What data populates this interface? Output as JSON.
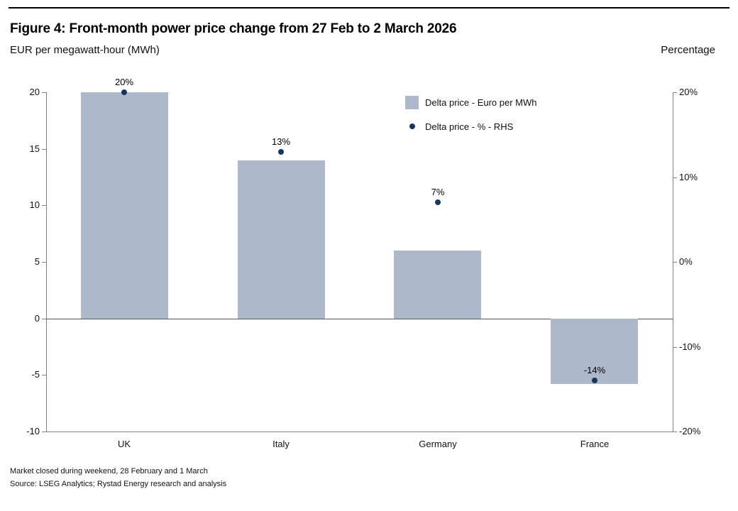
{
  "header": {
    "title": "Figure 4: Front-month power price change from 27 Feb to 2 March 2026",
    "subtitle_left": "EUR per megawatt-hour (MWh)",
    "subtitle_right": "Percentage"
  },
  "legend": {
    "bar_label": "Delta price - Euro per MWh",
    "dot_label": "Delta price - % - RHS"
  },
  "chart_data": {
    "type": "bar",
    "categories": [
      "UK",
      "Italy",
      "Germany",
      "France"
    ],
    "series": [
      {
        "name": "Delta price - Euro per MWh",
        "type": "bar",
        "axis": "left",
        "values": [
          20,
          14,
          6,
          -5.8
        ]
      },
      {
        "name": "Delta price - % - RHS",
        "type": "scatter",
        "axis": "right",
        "values": [
          20,
          13,
          7,
          -14
        ],
        "labels": [
          "20%",
          "13%",
          "7%",
          "-14%"
        ]
      }
    ],
    "left_axis": {
      "title": "EUR per megawatt-hour (MWh)",
      "min": -10,
      "max": 20,
      "ticks": [
        20,
        15,
        10,
        5,
        0,
        -5,
        -10
      ]
    },
    "right_axis": {
      "title": "Percentage",
      "min": -20,
      "max": 20,
      "ticks": [
        20,
        10,
        0,
        -10,
        -20
      ],
      "tick_suffix": "%"
    },
    "grid": "off",
    "legend_position": "top-center-inside",
    "colors": {
      "bar": "#adb9ca",
      "dot": "#17365d",
      "axis": "#808080"
    }
  },
  "footer": {
    "note": "Market closed during weekend, 28 February and 1 March",
    "source": "Source: LSEG Analytics; Rystad Energy research and analysis"
  }
}
